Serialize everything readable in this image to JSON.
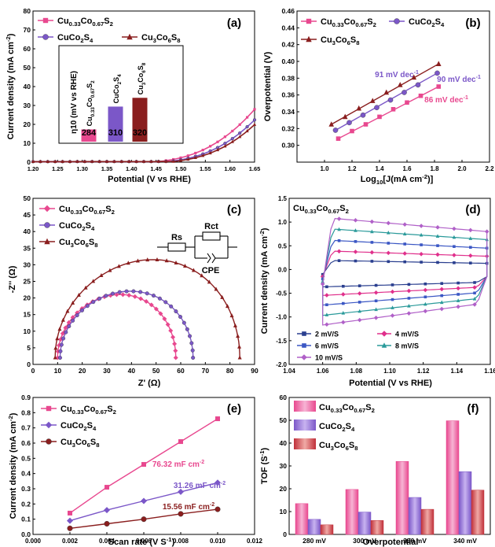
{
  "colors": {
    "cu": "#e8488f",
    "cuco": "#7b57c8",
    "co": "#8a1e1e"
  },
  "chart_data": [
    {
      "panel": "(a)",
      "type": "line",
      "xlabel": "Potential (V vs RHE)",
      "ylabel": "Current density (mA cm",
      "ylabel_sup": "-2",
      "ylabel_tail": ")",
      "xlim": [
        1.2,
        1.65
      ],
      "ylim": [
        0,
        80
      ],
      "xticks": [
        "1.20",
        "1.25",
        "1.30",
        "1.35",
        "1.40",
        "1.45",
        "1.50",
        "1.55",
        "1.60",
        "1.65"
      ],
      "yticks": [
        "0",
        "10",
        "20",
        "30",
        "40",
        "50",
        "60",
        "70",
        "80"
      ],
      "legend": [
        {
          "main": "Cu",
          "sub1": "0.33",
          "mid": "Co",
          "sub2": "0.67",
          "end": "S",
          "sub3": "2"
        },
        {
          "main": "CuCo",
          "sub1": "2",
          "mid": "S",
          "sub2": "4",
          "end": "",
          "sub3": ""
        },
        {
          "main": "Cu",
          "sub1": "3",
          "mid": "Co",
          "sub2": "6",
          "end": "S",
          "sub3": "8"
        }
      ],
      "series": [
        {
          "name": "Cu0.33Co0.67S2",
          "onset": 1.505,
          "scale": 1.0
        },
        {
          "name": "CuCo2S4",
          "onset": 1.525,
          "scale": 1.0
        },
        {
          "name": "Cu3Co6S8",
          "onset": 1.535,
          "scale": 1.0
        }
      ],
      "inset": {
        "ylabel": "η10 (mV vs RHE)",
        "bars": [
          {
            "label": "Cu0.33Co0.67S2",
            "value": 284,
            "value_text": "284"
          },
          {
            "label": "CuCo2S4",
            "value": 310,
            "value_text": "310"
          },
          {
            "label": "Cu3Co6S8",
            "value": 320,
            "value_text": "320"
          }
        ]
      }
    },
    {
      "panel": "(b)",
      "type": "scatter",
      "xlabel": "Log",
      "xlabel_sub": "10",
      "xlabel_tail": "[J(mA cm",
      "xlabel_sup": "-2",
      "xlabel_end": ")]",
      "ylabel": "Overpotential (V)",
      "xlim": [
        0.8,
        2.2
      ],
      "ylim": [
        0.28,
        0.46
      ],
      "xticks": [
        "1.0",
        "1.2",
        "1.4",
        "1.6",
        "1.8",
        "2.0",
        "2.2"
      ],
      "yticks": [
        "0.30",
        "0.32",
        "0.34",
        "0.36",
        "0.38",
        "0.40",
        "0.42",
        "0.44",
        "0.46"
      ],
      "series": [
        {
          "name": "Cu0.33Co0.67S2",
          "x": [
            1.1,
            1.2,
            1.3,
            1.4,
            1.5,
            1.6,
            1.7,
            1.83
          ],
          "y": [
            0.308,
            0.317,
            0.325,
            0.334,
            0.343,
            0.351,
            0.359,
            0.37
          ]
        },
        {
          "name": "CuCo2S4",
          "x": [
            1.08,
            1.18,
            1.28,
            1.38,
            1.48,
            1.58,
            1.68,
            1.82
          ],
          "y": [
            0.318,
            0.327,
            0.336,
            0.345,
            0.354,
            0.363,
            0.372,
            0.386
          ]
        },
        {
          "name": "Cu3Co6S8",
          "x": [
            1.05,
            1.15,
            1.25,
            1.35,
            1.45,
            1.55,
            1.65,
            1.83
          ],
          "y": [
            0.325,
            0.334,
            0.344,
            0.353,
            0.363,
            0.372,
            0.381,
            0.397
          ]
        }
      ],
      "annotations": [
        "91 mV dec",
        "90 mV dec",
        "86 mV dec"
      ],
      "annotation_sup": "-1"
    },
    {
      "panel": "(c)",
      "type": "scatter",
      "xlabel": "Z' (Ω)",
      "ylabel": "-Z'' (Ω)",
      "xlim": [
        0,
        90
      ],
      "ylim": [
        0,
        50
      ],
      "xticks": [
        "0",
        "10",
        "20",
        "30",
        "40",
        "50",
        "60",
        "70",
        "80",
        "90"
      ],
      "yticks": [
        "0",
        "5",
        "10",
        "15",
        "20",
        "25",
        "30",
        "35",
        "40",
        "45",
        "50"
      ],
      "series": [
        {
          "name": "Cu0.33Co0.67S2",
          "x0": 10,
          "x1": 58,
          "peak": 19
        },
        {
          "name": "CuCo2S4",
          "x0": 11,
          "x1": 65,
          "peak": 20
        },
        {
          "name": "Cu3Co6S8",
          "x0": 9,
          "x1": 84,
          "peak": 29.5
        }
      ],
      "circuit": {
        "rs": "Rs",
        "rct": "Rct",
        "cpe": "CPE"
      }
    },
    {
      "panel": "(d)",
      "type": "line",
      "title": "Cu0.33Co0.67S2",
      "xlabel": "Potential (V vs RHE)",
      "ylabel": "Current density (mA cm",
      "ylabel_sup": "-2",
      "ylabel_tail": ")",
      "xlim": [
        1.04,
        1.16
      ],
      "ylim": [
        -2.0,
        1.5
      ],
      "xticks": [
        "1.04",
        "1.06",
        "1.08",
        "1.10",
        "1.12",
        "1.14",
        "1.16"
      ],
      "yticks": [
        "-2.0",
        "-1.5",
        "-1.0",
        "-0.5",
        "0.0",
        "0.5",
        "1.0",
        "1.5"
      ],
      "series": [
        {
          "name": "2 mV/S",
          "amp": 0.18,
          "color": "#2a3f8f"
        },
        {
          "name": "4 mV/S",
          "amp": 0.33,
          "color": "#e0308c"
        },
        {
          "name": "6 mV/S",
          "amp": 0.5,
          "color": "#3b57c4"
        },
        {
          "name": "8 mV/S",
          "amp": 0.68,
          "color": "#2a9a9a"
        },
        {
          "name": "10 mV/S",
          "amp": 0.85,
          "color": "#b060c8"
        }
      ]
    },
    {
      "panel": "(e)",
      "type": "line",
      "xlabel": "Scan rate (V S",
      "xlabel_sup": "-1",
      "xlabel_tail": ")",
      "ylabel": "Current density (mA cm",
      "ylabel_sup": "-2",
      "ylabel_tail": ")",
      "xlim": [
        0,
        0.012
      ],
      "ylim": [
        0,
        0.9
      ],
      "xticks": [
        "0.000",
        "0.002",
        "0.004",
        "0.006",
        "0.008",
        "0.010",
        "0.012"
      ],
      "yticks": [
        "0.0",
        "0.1",
        "0.2",
        "0.3",
        "0.4",
        "0.5",
        "0.6",
        "0.7",
        "0.8",
        "0.9"
      ],
      "x": [
        0.002,
        0.004,
        0.006,
        0.008,
        0.01
      ],
      "series": [
        {
          "name": "Cu0.33Co0.67S2",
          "values": [
            0.14,
            0.31,
            0.46,
            0.61,
            0.76
          ]
        },
        {
          "name": "CuCo2S4",
          "values": [
            0.09,
            0.16,
            0.22,
            0.28,
            0.34
          ]
        },
        {
          "name": "Cu3Co6S8",
          "values": [
            0.04,
            0.07,
            0.1,
            0.135,
            0.165
          ]
        }
      ],
      "annotations": [
        "76.32 mF cm",
        "31.26 mF cm",
        "15.56 mF cm"
      ],
      "annotation_sup": "-2"
    },
    {
      "panel": "(f)",
      "type": "bar",
      "xlabel": "Overpotential",
      "ylabel": "TOF (S",
      "ylabel_sup": "-1",
      "ylabel_tail": ")",
      "ylim": [
        0,
        60
      ],
      "yticks": [
        "0",
        "10",
        "20",
        "30",
        "40",
        "50",
        "60"
      ],
      "categories": [
        "280 mV",
        "300 mV",
        "320 mV",
        "340 mV"
      ],
      "series": [
        {
          "name": "Cu0.33Co0.67S2",
          "values": [
            13.5,
            19.7,
            32,
            49.8
          ]
        },
        {
          "name": "CuCo2S4",
          "values": [
            6.6,
            9.8,
            16.2,
            27.5
          ]
        },
        {
          "name": "Cu3Co6S8",
          "values": [
            4.2,
            6.1,
            11,
            19.4
          ]
        }
      ]
    }
  ]
}
